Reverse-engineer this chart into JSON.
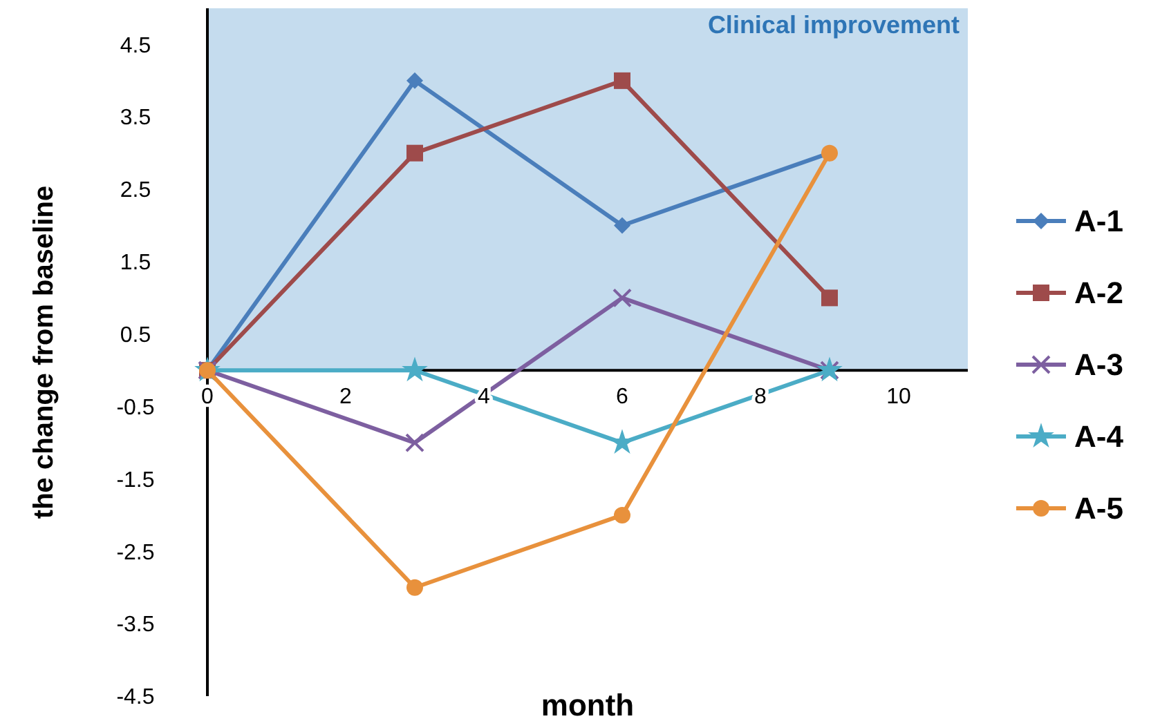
{
  "chart_data": {
    "type": "line",
    "xlabel": "month",
    "ylabel": "the change from baseline",
    "x": [
      0,
      3,
      6,
      9
    ],
    "series": [
      {
        "name": "A-1",
        "color": "#4a7ebb",
        "marker": "diamond",
        "values": [
          0,
          4,
          2,
          3
        ]
      },
      {
        "name": "A-2",
        "color": "#9e4b4b",
        "marker": "square",
        "values": [
          0,
          3,
          4,
          1
        ]
      },
      {
        "name": "A-3",
        "color": "#7d5fa0",
        "marker": "cross",
        "values": [
          0,
          -1,
          1,
          0
        ]
      },
      {
        "name": "A-4",
        "color": "#4bacc6",
        "marker": "star",
        "values": [
          0,
          0,
          -1,
          0
        ]
      },
      {
        "name": "A-5",
        "color": "#e8913c",
        "marker": "circle",
        "values": [
          0,
          -3,
          -2,
          3
        ]
      }
    ],
    "xlim": [
      0,
      11
    ],
    "xticks": [
      0,
      2,
      4,
      6,
      8,
      10
    ],
    "ylim": [
      -4.5,
      5
    ],
    "yticks": [
      -4.5,
      -3.5,
      -2.5,
      -1.5,
      -0.5,
      0.5,
      1.5,
      2.5,
      3.5,
      4.5
    ],
    "bands": [
      {
        "axis": "y",
        "from": 0,
        "to": 5,
        "label": "Clinical improvement",
        "color": "#c5dcee"
      }
    ],
    "grid": false,
    "legend": "right"
  }
}
